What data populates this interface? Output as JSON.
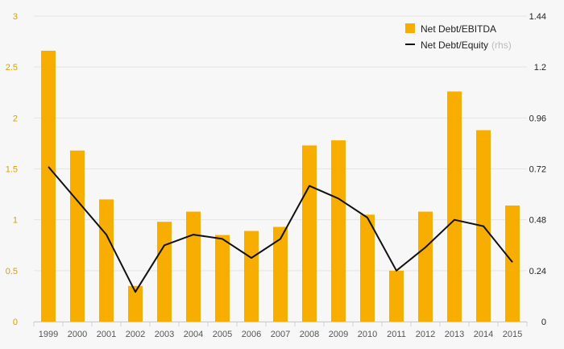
{
  "colors": {
    "bar": "#f8ae00",
    "line": "#111111",
    "left_axis_text": "#d9a100",
    "right_axis_text": "#222222",
    "background": "#f7f7f7"
  },
  "legend": {
    "bar_label": "Net Debt/EBITDA",
    "line_label": "Net Debt/Equity",
    "line_note": "(rhs)"
  },
  "chart_data": {
    "type": "bar",
    "categories": [
      "1999",
      "2000",
      "2001",
      "2002",
      "2003",
      "2004",
      "2005",
      "2006",
      "2007",
      "2008",
      "2009",
      "2010",
      "2011",
      "2012",
      "2013",
      "2014",
      "2015"
    ],
    "series": [
      {
        "name": "Net Debt/EBITDA",
        "type": "bar",
        "axis": "left",
        "values": [
          2.66,
          1.68,
          1.2,
          0.35,
          0.98,
          1.08,
          0.85,
          0.89,
          0.93,
          1.73,
          1.78,
          1.05,
          0.5,
          1.08,
          2.26,
          1.88,
          1.14
        ]
      },
      {
        "name": "Net Debt/Equity",
        "type": "line",
        "axis": "right",
        "values": [
          0.73,
          0.57,
          0.41,
          0.14,
          0.36,
          0.41,
          0.39,
          0.3,
          0.39,
          0.64,
          0.58,
          0.49,
          0.24,
          0.35,
          0.48,
          0.45,
          0.28
        ]
      }
    ],
    "y_left": {
      "lim": [
        0,
        3
      ],
      "ticks": [
        0,
        0.5,
        1,
        1.5,
        2,
        2.5,
        3
      ],
      "tick_labels": [
        "0",
        "0.5",
        "1",
        "1.5",
        "2",
        "2.5",
        "3"
      ]
    },
    "y_right": {
      "lim": [
        0,
        1.44
      ],
      "ticks": [
        0,
        0.24,
        0.48,
        0.72,
        0.96,
        1.2,
        1.44
      ],
      "tick_labels": [
        "0",
        "0.24",
        "0.48",
        "0.72",
        "0.96",
        "1.2",
        "1.44"
      ]
    },
    "grid": true,
    "legend_position": "top-right"
  }
}
